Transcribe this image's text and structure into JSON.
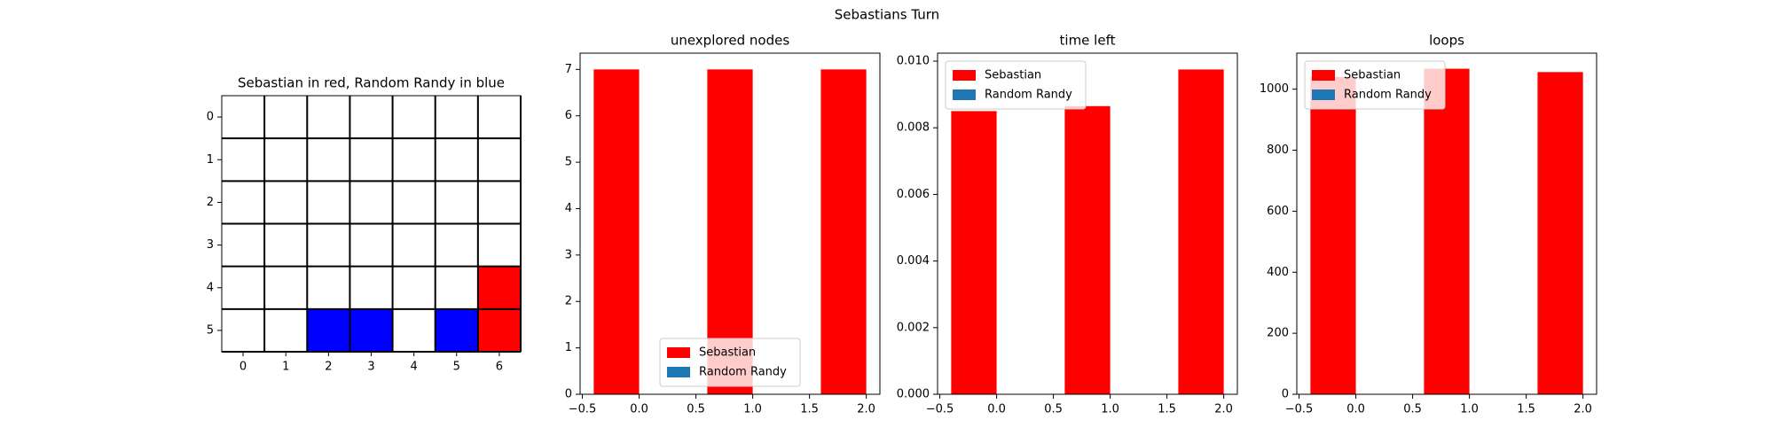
{
  "title": "Sebastians Turn",
  "chart_data": [
    {
      "type": "grid",
      "title": "Sebastian in red, Random Randy in blue",
      "xlim": [
        -0.5,
        6.5
      ],
      "ylim": [
        5.5,
        -0.5
      ],
      "xticks": [
        0,
        1,
        2,
        3,
        4,
        5,
        6
      ],
      "yticks": [
        0,
        1,
        2,
        3,
        4,
        5
      ],
      "series": [
        {
          "color": "#ff0000",
          "x": [
            6,
            6
          ],
          "y": [
            4,
            5
          ]
        },
        {
          "color": "#0000ff",
          "x": [
            2,
            3,
            5
          ],
          "y": [
            5,
            5,
            5
          ]
        }
      ]
    },
    {
      "type": "bar",
      "title": "unexplored nodes",
      "x": [
        -0.2,
        0.8,
        1.8
      ],
      "bar_width": 0.4,
      "series": [
        {
          "name": "Sebastian",
          "color": "#ff0000",
          "values": [
            7,
            7,
            7
          ]
        },
        {
          "name": "Random Randy",
          "color": "#1f77b4",
          "values": [
            null,
            null,
            null
          ]
        }
      ],
      "xlim": [
        -0.52,
        2.12
      ],
      "xticks": [
        {
          "value": -0.5,
          "label": "−0.5"
        },
        {
          "value": 0,
          "label": "0.0"
        },
        {
          "value": 0.5,
          "label": "0.5"
        },
        {
          "value": 1,
          "label": "1.0"
        },
        {
          "value": 1.5,
          "label": "1.5"
        },
        {
          "value": 2,
          "label": "2.0"
        }
      ],
      "ylim": [
        0,
        7.35
      ],
      "yticks": [
        0,
        1,
        2,
        3,
        4,
        5,
        6,
        7
      ],
      "legend": "lower center"
    },
    {
      "type": "bar",
      "title": "time left",
      "x": [
        -0.2,
        0.8,
        1.8
      ],
      "bar_width": 0.4,
      "series": [
        {
          "name": "Sebastian",
          "color": "#ff0000",
          "values": [
            0.0085,
            0.00865,
            0.00975
          ]
        },
        {
          "name": "Random Randy",
          "color": "#1f77b4",
          "values": [
            null,
            null,
            null
          ]
        }
      ],
      "xlim": [
        -0.52,
        2.12
      ],
      "xticks": [
        {
          "value": -0.5,
          "label": "−0.5"
        },
        {
          "value": 0,
          "label": "0.0"
        },
        {
          "value": 0.5,
          "label": "0.5"
        },
        {
          "value": 1,
          "label": "1.0"
        },
        {
          "value": 1.5,
          "label": "1.5"
        },
        {
          "value": 2,
          "label": "2.0"
        }
      ],
      "ylim": [
        0,
        0.01024
      ],
      "yticks": [
        {
          "value": 0,
          "label": "0.000"
        },
        {
          "value": 0.002,
          "label": "0.002"
        },
        {
          "value": 0.004,
          "label": "0.004"
        },
        {
          "value": 0.006,
          "label": "0.006"
        },
        {
          "value": 0.008,
          "label": "0.008"
        },
        {
          "value": 0.01,
          "label": "0.010"
        }
      ],
      "legend": "upper left"
    },
    {
      "type": "bar",
      "title": "loops",
      "x": [
        -0.2,
        0.8,
        1.8
      ],
      "bar_width": 0.4,
      "series": [
        {
          "name": "Sebastian",
          "color": "#ff0000",
          "values": [
            1040,
            1067,
            1056
          ]
        },
        {
          "name": "Random Randy",
          "color": "#1f77b4",
          "values": [
            null,
            null,
            null
          ]
        }
      ],
      "xlim": [
        -0.52,
        2.12
      ],
      "xticks": [
        {
          "value": -0.5,
          "label": "−0.5"
        },
        {
          "value": 0,
          "label": "0.0"
        },
        {
          "value": 0.5,
          "label": "0.5"
        },
        {
          "value": 1,
          "label": "1.0"
        },
        {
          "value": 1.5,
          "label": "1.5"
        },
        {
          "value": 2,
          "label": "2.0"
        }
      ],
      "ylim": [
        0,
        1118
      ],
      "yticks": [
        0,
        200,
        400,
        600,
        800,
        1000
      ],
      "legend": "upper left"
    }
  ]
}
